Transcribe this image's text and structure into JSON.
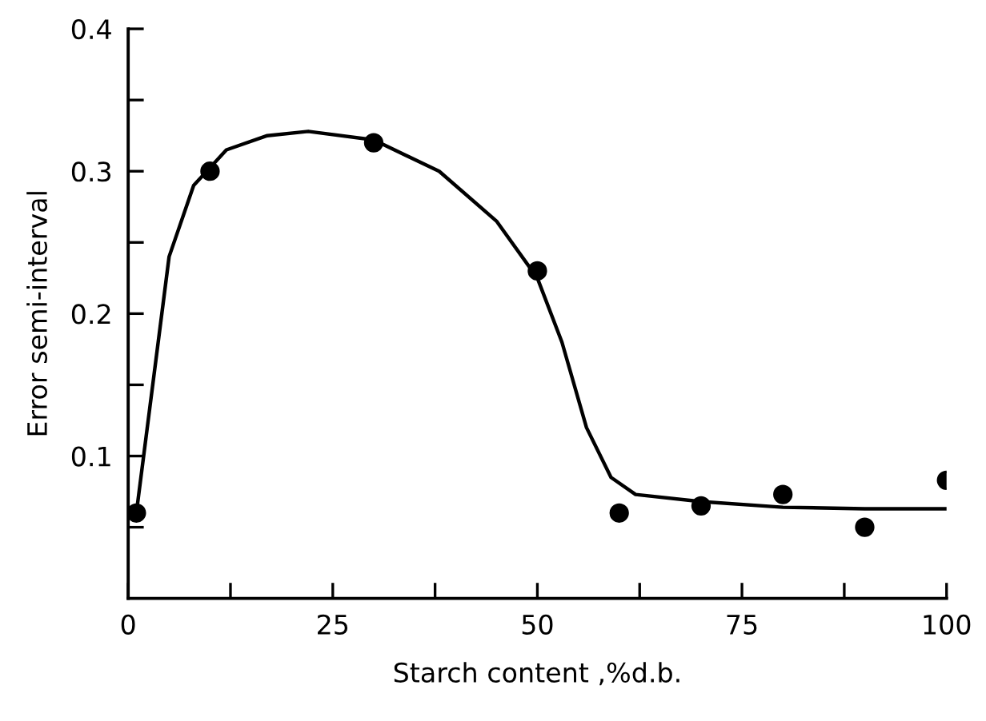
{
  "chart_data": {
    "type": "scatter",
    "xlabel": "Starch content ,%d.b.",
    "ylabel": "Error semi-interval",
    "xlim": [
      0,
      100
    ],
    "ylim": [
      0,
      0.4
    ],
    "xticks": [
      0,
      {
        "value": 12.5,
        "label": null
      },
      25,
      {
        "value": 37.5,
        "label": null
      },
      50,
      {
        "value": 62.5,
        "label": null
      },
      75,
      {
        "value": 87.5,
        "label": null
      },
      100
    ],
    "yticks": [
      {
        "value": 0.05,
        "label": null
      },
      0.1,
      {
        "value": 0.15,
        "label": null
      },
      0.2,
      {
        "value": 0.25,
        "label": null
      },
      0.3,
      {
        "value": 0.35,
        "label": null
      },
      0.4
    ],
    "grid": false,
    "marker": "circle",
    "series": [
      {
        "color": "#000000",
        "x": [
          1,
          10,
          30,
          50,
          60,
          70,
          80,
          90,
          100
        ],
        "values": [
          0.06,
          0.3,
          0.32,
          0.23,
          0.06,
          0.065,
          0.073,
          0.05,
          0.083
        ]
      },
      {
        "type": "line",
        "color": "#000000",
        "marker": "none",
        "line_style": "solid",
        "x": [
          1,
          3,
          5,
          8,
          12,
          17,
          22,
          30,
          38,
          45,
          50,
          53,
          56,
          59,
          62,
          70,
          80,
          90,
          100
        ],
        "values": [
          0.06,
          0.15,
          0.24,
          0.29,
          0.315,
          0.325,
          0.328,
          0.322,
          0.3,
          0.265,
          0.225,
          0.18,
          0.12,
          0.085,
          0.073,
          0.068,
          0.064,
          0.063,
          0.063
        ]
      }
    ]
  }
}
